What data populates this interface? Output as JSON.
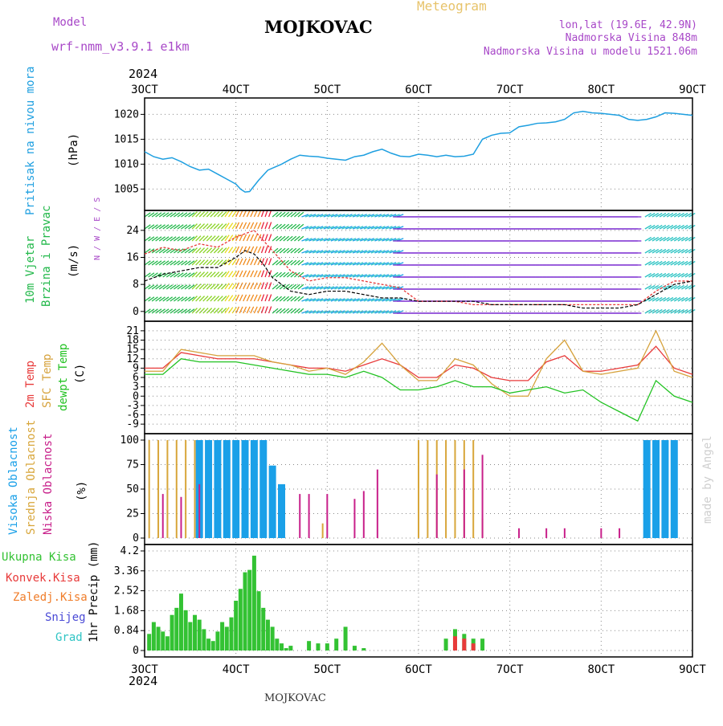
{
  "header": {
    "model_label": "Model",
    "model_name": "wrf-nmm_v3.9.1 e1km",
    "station": "MOJKOVAC",
    "product": "Meteogram",
    "lonlat": "lon,lat (19.6E, 42.9N)",
    "elevation": "Nadmorska Visina 848m",
    "model_elevation": "Nadmorska Visina u modelu 1521.06m",
    "year": "2024",
    "footer_station": "MOJKOVAC",
    "credit": "made by Angel"
  },
  "colors": {
    "pressure": "#1e9fe0",
    "temp2m": "#e83a3a",
    "sfc": "#d6a23c",
    "dewpt": "#22c222",
    "high_cloud": "#1aa0e8",
    "mid_cloud": "#d8a63a",
    "low_cloud": "#c8208a",
    "precip_total": "#33c233",
    "precip_conv": "#e83a3a",
    "freezing": "#f07d2a",
    "snow": "#4a4ad6",
    "hail": "#2ec4c4",
    "wind_label": "#22b84a",
    "purple_label": "#a848c8",
    "text": "#000000"
  },
  "chart_data": [
    {
      "type": "line",
      "panel": "pressure",
      "ylabel": "Pritisak na nivou mora",
      "unit": "(hPa)",
      "ylim": [
        1002,
        1022
      ],
      "yticks": [
        1005,
        1010,
        1015,
        1020
      ],
      "xlim": [
        0,
        6
      ],
      "x_tick_labels": [
        "3OCT",
        "4OCT",
        "5OCT",
        "6OCT",
        "7OCT",
        "8OCT",
        "9OCT"
      ],
      "grid": true,
      "series": [
        {
          "x": [
            0,
            0.1,
            0.2,
            0.3,
            0.4,
            0.5,
            0.6,
            0.7,
            0.8,
            0.9,
            1.0,
            1.05,
            1.1,
            1.15,
            1.25,
            1.35,
            1.5,
            1.6,
            1.7,
            1.8,
            1.9,
            2.0,
            2.1,
            2.2,
            2.3,
            2.4,
            2.5,
            2.6,
            2.7,
            2.8,
            2.9,
            3.0,
            3.1,
            3.2,
            3.3,
            3.4,
            3.5,
            3.6,
            3.7,
            3.8,
            3.9,
            4.0,
            4.1,
            4.2,
            4.3,
            4.4,
            4.5,
            4.6,
            4.7,
            4.8,
            4.9,
            5.0,
            5.1,
            5.2,
            5.3,
            5.4,
            5.5,
            5.6,
            5.7,
            5.8,
            5.9,
            6.0
          ],
          "values": [
            1012.5,
            1011.5,
            1011.0,
            1011.3,
            1010.5,
            1009.5,
            1008.8,
            1009.0,
            1008.0,
            1007.0,
            1006.0,
            1005.0,
            1004.4,
            1004.5,
            1006.8,
            1008.8,
            1010.0,
            1011.0,
            1011.8,
            1011.6,
            1011.5,
            1011.2,
            1011.0,
            1010.8,
            1011.5,
            1011.8,
            1012.5,
            1013.0,
            1012.2,
            1011.6,
            1011.5,
            1012.0,
            1011.8,
            1011.5,
            1011.8,
            1011.5,
            1011.6,
            1012.0,
            1015.0,
            1015.8,
            1016.2,
            1016.3,
            1017.5,
            1017.8,
            1018.2,
            1018.3,
            1018.5,
            1019.0,
            1020.3,
            1020.6,
            1020.3,
            1020.2,
            1020.0,
            1019.8,
            1019.0,
            1018.8,
            1019.0,
            1019.5,
            1020.3,
            1020.2,
            1020.0,
            1019.8
          ]
        }
      ]
    },
    {
      "type": "line",
      "panel": "wind",
      "ylabel": "10m Vjetar Brzina i Pravac",
      "unit": "(m/s)",
      "ylim": [
        -1,
        28
      ],
      "yticks": [
        0,
        8,
        16,
        24
      ],
      "grid": true,
      "legend_compass": "N / W / E / S",
      "series": [
        {
          "name": "speed",
          "x": [
            0,
            0.2,
            0.4,
            0.6,
            0.8,
            1.0,
            1.1,
            1.2,
            1.3,
            1.4,
            1.5,
            1.6,
            1.8,
            2.0,
            2.2,
            2.4,
            2.6,
            2.8,
            3.0,
            3.2,
            3.4,
            3.6,
            3.8,
            4.0,
            4.2,
            4.4,
            4.6,
            4.8,
            5.0,
            5.2,
            5.4,
            5.6,
            5.8,
            6.0
          ],
          "values": [
            9,
            11,
            12,
            13,
            13,
            16,
            18,
            17,
            14,
            10,
            8,
            6,
            5,
            6,
            6,
            5,
            4,
            4,
            3,
            3,
            3,
            3,
            2,
            2,
            2,
            2,
            2,
            1,
            1,
            1,
            2,
            5,
            8,
            9
          ]
        },
        {
          "name": "gust",
          "x": [
            0,
            0.2,
            0.4,
            0.6,
            0.8,
            1.0,
            1.2,
            1.4,
            1.6,
            1.8,
            2.0,
            2.2,
            2.4,
            2.6,
            2.8,
            3.0,
            3.2,
            3.4,
            3.6,
            3.8,
            4.0,
            4.2,
            4.4,
            4.6,
            4.8,
            5.0,
            5.2,
            5.4,
            5.6,
            5.8,
            6.0
          ],
          "values": [
            17,
            19,
            18,
            20,
            19,
            22,
            24,
            18,
            12,
            9,
            10,
            10,
            9,
            8,
            7,
            3,
            3,
            3,
            2,
            2,
            2,
            2,
            2,
            2,
            2,
            2,
            2,
            2,
            6,
            9,
            9
          ]
        }
      ]
    },
    {
      "type": "line",
      "panel": "temperature",
      "ylabel": "2m Temp / SFC Temp / dewpt Temp",
      "unit": "(C)",
      "ylim": [
        -10,
        22
      ],
      "yticks": [
        -9,
        -6,
        -3,
        0,
        3,
        6,
        9,
        12,
        15,
        18,
        21
      ],
      "grid": true,
      "series": [
        {
          "name": "2m Temp",
          "x": [
            0,
            0.2,
            0.4,
            0.6,
            0.8,
            1.0,
            1.2,
            1.4,
            1.6,
            1.8,
            2.0,
            2.2,
            2.4,
            2.6,
            2.8,
            3.0,
            3.2,
            3.4,
            3.6,
            3.8,
            4.0,
            4.2,
            4.4,
            4.6,
            4.8,
            5.0,
            5.2,
            5.4,
            5.6,
            5.8,
            6.0
          ],
          "values": [
            9,
            9,
            14,
            13,
            12,
            12,
            12,
            11,
            10,
            9,
            9,
            8,
            10,
            12,
            10,
            6,
            6,
            10,
            9,
            6,
            5,
            5,
            11,
            13,
            8,
            8,
            9,
            10,
            16,
            9,
            7
          ]
        },
        {
          "name": "SFC Temp",
          "x": [
            0,
            0.2,
            0.4,
            0.6,
            0.8,
            1.0,
            1.2,
            1.4,
            1.6,
            1.8,
            2.0,
            2.2,
            2.4,
            2.6,
            2.8,
            3.0,
            3.2,
            3.4,
            3.6,
            3.8,
            4.0,
            4.2,
            4.4,
            4.6,
            4.8,
            5.0,
            5.2,
            5.4,
            5.6,
            5.8,
            6.0
          ],
          "values": [
            8,
            8,
            15,
            14,
            13,
            13,
            13,
            11,
            10,
            8,
            9,
            7,
            11,
            17,
            10,
            5,
            5,
            12,
            10,
            4,
            0,
            0,
            12,
            18,
            8,
            7,
            8,
            9,
            21,
            8,
            6
          ]
        },
        {
          "name": "dewpt Temp",
          "x": [
            0,
            0.2,
            0.4,
            0.6,
            0.8,
            1.0,
            1.2,
            1.4,
            1.6,
            1.8,
            2.0,
            2.2,
            2.4,
            2.6,
            2.8,
            3.0,
            3.2,
            3.4,
            3.6,
            3.8,
            4.0,
            4.2,
            4.4,
            4.6,
            4.8,
            5.0,
            5.2,
            5.4,
            5.6,
            5.8,
            6.0
          ],
          "values": [
            7,
            7,
            12,
            11,
            11,
            11,
            10,
            9,
            8,
            7,
            7,
            6,
            8,
            6,
            2,
            2,
            3,
            5,
            3,
            3,
            1,
            2,
            3,
            1,
            2,
            -2,
            -5,
            -8,
            5,
            0,
            -2
          ]
        }
      ]
    },
    {
      "type": "bar",
      "panel": "cloud",
      "ylabel": "Visoka Oblacnost / Srednja Oblacnost / Niska Oblacnost",
      "unit": "(%)",
      "ylim": [
        0,
        100
      ],
      "yticks": [
        0,
        25,
        50,
        75,
        100
      ],
      "grid": true,
      "series": [
        {
          "name": "Visoka Oblacnost",
          "x": [
            0.6,
            0.7,
            0.8,
            0.9,
            1.0,
            1.1,
            1.2,
            1.3,
            1.4,
            1.5,
            5.5,
            5.6,
            5.7,
            5.8
          ],
          "values": [
            100,
            100,
            100,
            100,
            100,
            100,
            100,
            100,
            74,
            55,
            100,
            100,
            100,
            100
          ]
        },
        {
          "name": "Srednja Oblacnost",
          "x": [
            0.05,
            0.15,
            0.25,
            0.35,
            0.45,
            0.55,
            1.95,
            3.0,
            3.1,
            3.2,
            3.3,
            3.4,
            3.5,
            3.6,
            3.7
          ],
          "values": [
            100,
            100,
            100,
            100,
            100,
            100,
            15,
            100,
            100,
            100,
            100,
            100,
            100,
            100,
            20
          ]
        },
        {
          "name": "Niska Oblacnost",
          "x": [
            0.2,
            0.4,
            0.6,
            1.7,
            1.8,
            2.0,
            2.3,
            2.4,
            2.55,
            3.2,
            3.5,
            3.7,
            4.1,
            4.4,
            4.6,
            5.0,
            5.2
          ],
          "values": [
            45,
            42,
            55,
            45,
            45,
            45,
            40,
            48,
            70,
            65,
            70,
            85,
            10,
            10,
            10,
            10,
            10
          ]
        }
      ]
    },
    {
      "type": "bar",
      "panel": "precipitation",
      "ylabel": "1hr Precip",
      "unit": "(mm)",
      "ylim": [
        0,
        4.2
      ],
      "yticks": [
        0,
        0.84,
        1.68,
        2.52,
        3.36,
        4.2
      ],
      "grid": true,
      "legend": [
        "Ukupna Kisa",
        "Konvek.Kisa",
        "Zaledj.Kisa",
        "Snijeg",
        "Grad"
      ],
      "series": [
        {
          "name": "Ukupna Kisa",
          "x": [
            0.05,
            0.1,
            0.15,
            0.2,
            0.25,
            0.3,
            0.35,
            0.4,
            0.45,
            0.5,
            0.55,
            0.6,
            0.65,
            0.7,
            0.75,
            0.8,
            0.85,
            0.9,
            0.95,
            1.0,
            1.05,
            1.1,
            1.15,
            1.2,
            1.25,
            1.3,
            1.35,
            1.4,
            1.45,
            1.5,
            1.55,
            1.6,
            1.8,
            1.9,
            2.0,
            2.1,
            2.2,
            2.3,
            2.4,
            3.3,
            3.4,
            3.5,
            3.6,
            3.7
          ],
          "values": [
            0.7,
            1.2,
            1.0,
            0.8,
            0.6,
            1.5,
            1.8,
            2.4,
            1.7,
            1.2,
            1.5,
            1.3,
            0.9,
            0.5,
            0.4,
            0.8,
            1.2,
            1.0,
            1.4,
            2.1,
            2.6,
            3.3,
            3.4,
            4.0,
            2.5,
            1.8,
            1.3,
            1.0,
            0.5,
            0.3,
            0.1,
            0.2,
            0.4,
            0.3,
            0.3,
            0.5,
            1.0,
            0.2,
            0.1,
            0.5,
            0.9,
            0.7,
            0.5,
            0.5
          ]
        },
        {
          "name": "Konvek.Kisa",
          "x": [
            3.4,
            3.5,
            3.6
          ],
          "values": [
            0.6,
            0.5,
            0.3
          ]
        }
      ]
    }
  ]
}
